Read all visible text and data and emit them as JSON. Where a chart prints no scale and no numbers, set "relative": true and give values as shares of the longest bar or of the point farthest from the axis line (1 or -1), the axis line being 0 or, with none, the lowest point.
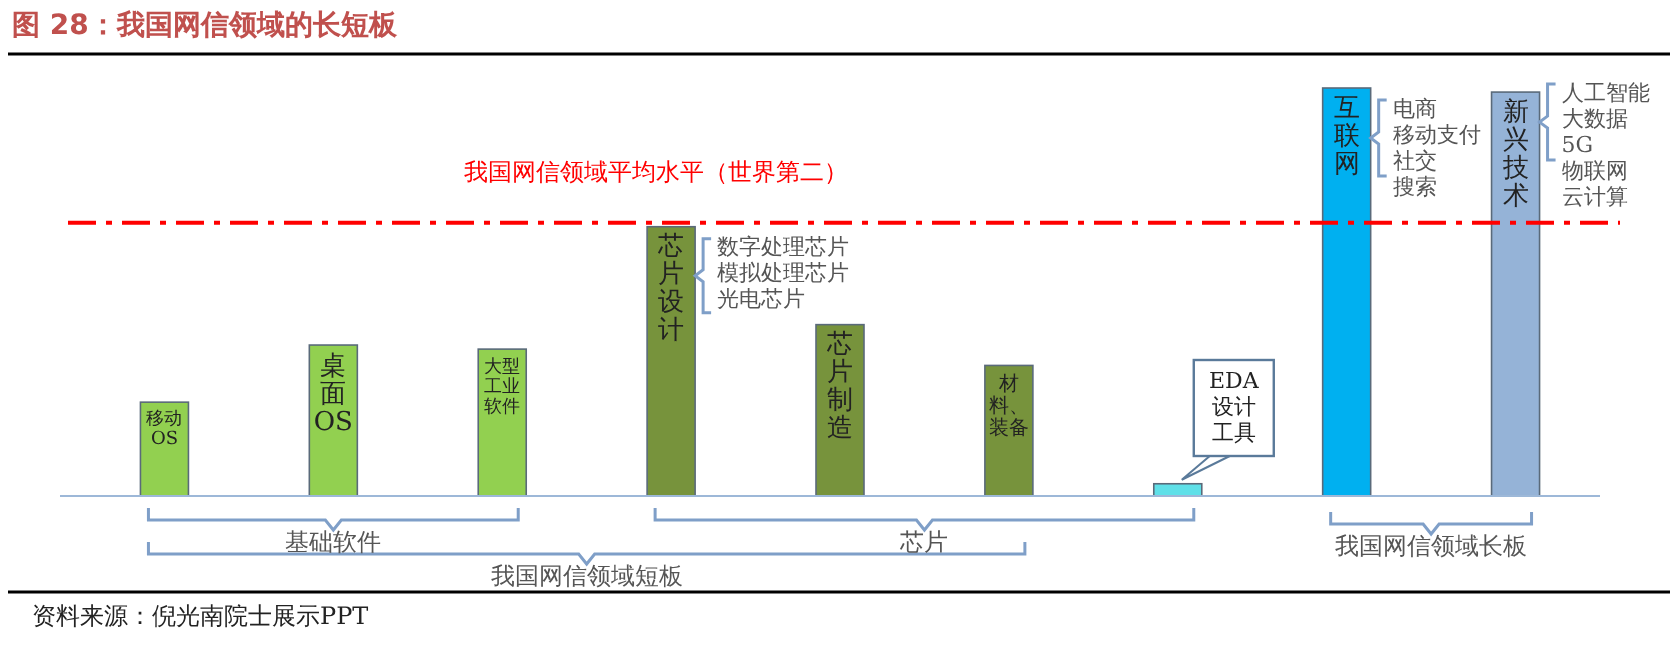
{
  "chart_data": {
    "type": "bar",
    "title": "图 28：我国网信领域的长短板",
    "relative": true,
    "categories": [
      "移动OS",
      "桌面OS",
      "大型工业软件",
      "芯片设计",
      "芯片制造",
      "材料、装备",
      "EDA设计工具",
      "互联网",
      "新兴技术"
    ],
    "values": [
      0.23,
      0.37,
      0.36,
      0.66,
      0.42,
      0.32,
      0.03,
      1.0,
      0.99
    ],
    "colors": [
      "#92d050",
      "#92d050",
      "#92d050",
      "#77933c",
      "#77933c",
      "#77933c",
      "#5fe0e8",
      "#00b0f0",
      "#95b3d7"
    ],
    "ref_lines": [
      {
        "axis": "y",
        "value": 0.67,
        "label": "我国网信领域平均水平（世界第二）",
        "color": "#ff0000",
        "line_style": "dashdot"
      }
    ],
    "annotations": [
      "数字处理芯片",
      "模拟处理芯片",
      "光电芯片",
      "电商",
      "移动支付",
      "社交",
      "搜索",
      "人工智能",
      "大数据",
      "5G",
      "物联网",
      "云计算",
      "基础软件",
      "芯片",
      "我国网信领域短板",
      "我国网信领域长板",
      "资料来源：倪光南院士展示PPT"
    ]
  }
}
